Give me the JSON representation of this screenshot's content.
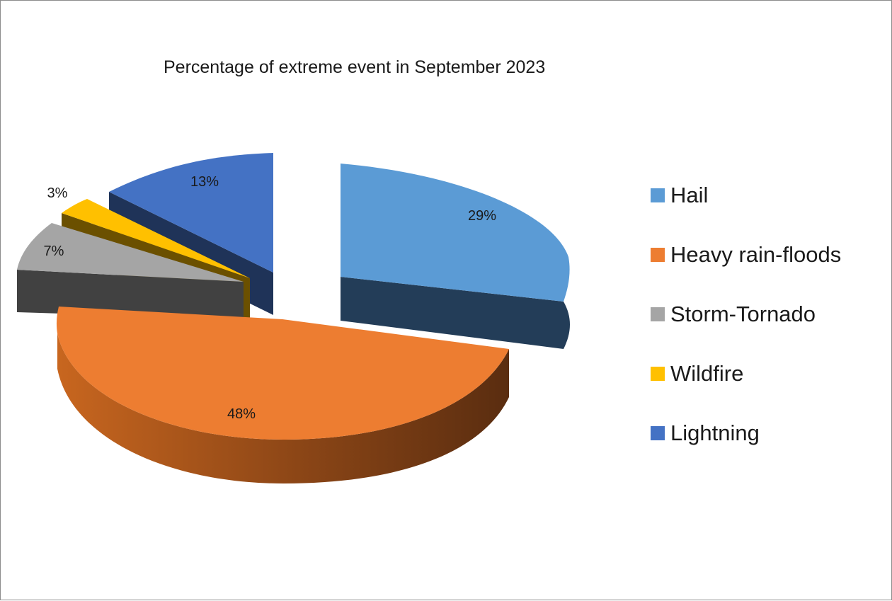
{
  "chart_data": {
    "type": "pie",
    "title": "Percentage of extreme event in September 2023",
    "categories": [
      "Hail",
      "Heavy rain-floods",
      "Storm-Tornado",
      "Wildfire",
      "Lightning"
    ],
    "values": [
      29,
      48,
      7,
      3,
      13
    ],
    "labels": [
      "29%",
      "48%",
      "7%",
      "3%",
      "13%"
    ],
    "colors": [
      "#5b9bd5",
      "#ed7d31",
      "#a5a5a5",
      "#ffc000",
      "#4472c4"
    ],
    "legend_position": "right",
    "style": "3d-exploded"
  }
}
